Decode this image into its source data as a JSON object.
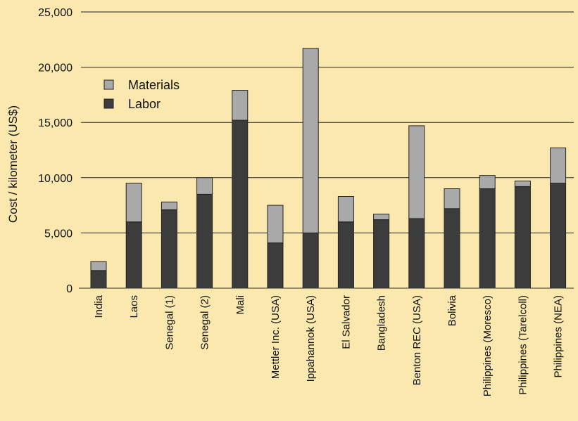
{
  "chart_data": {
    "type": "bar",
    "stacked": true,
    "ylabel": "Cost / kilometer (US$)",
    "ylim": [
      0,
      25000
    ],
    "yticks": [
      "0",
      "5,000",
      "10,000",
      "15,000",
      "20,000",
      "25,000"
    ],
    "grid": "horizontal",
    "legend_placement": "top-left",
    "categories": [
      "India",
      "Laos",
      "Senegal (1)",
      "Senegal (2)",
      "Mali",
      "Mettler Inc. (USA)",
      "Ippahannok (USA)",
      "El Salvador",
      "Bangladesh",
      "Benton REC (USA)",
      "Bolivia",
      "Philippines (Moresco)",
      "Philippines (Tarelcoll)",
      "Philippines (NEA)"
    ],
    "series": [
      {
        "name": "Labor",
        "color": "#3c3c3c",
        "values": [
          1600,
          6000,
          7100,
          8500,
          15200,
          4100,
          5000,
          6000,
          6200,
          6300,
          7200,
          9000,
          9200,
          9500
        ]
      },
      {
        "name": "Materials",
        "color": "#a9a9a9",
        "values": [
          800,
          3500,
          700,
          1500,
          2700,
          3400,
          16700,
          2300,
          500,
          8400,
          1800,
          1200,
          500,
          3200
        ]
      }
    ],
    "legend": [
      {
        "label": "Materials",
        "color": "#a9a9a9"
      },
      {
        "label": "Labor",
        "color": "#3c3c3c"
      }
    ]
  }
}
